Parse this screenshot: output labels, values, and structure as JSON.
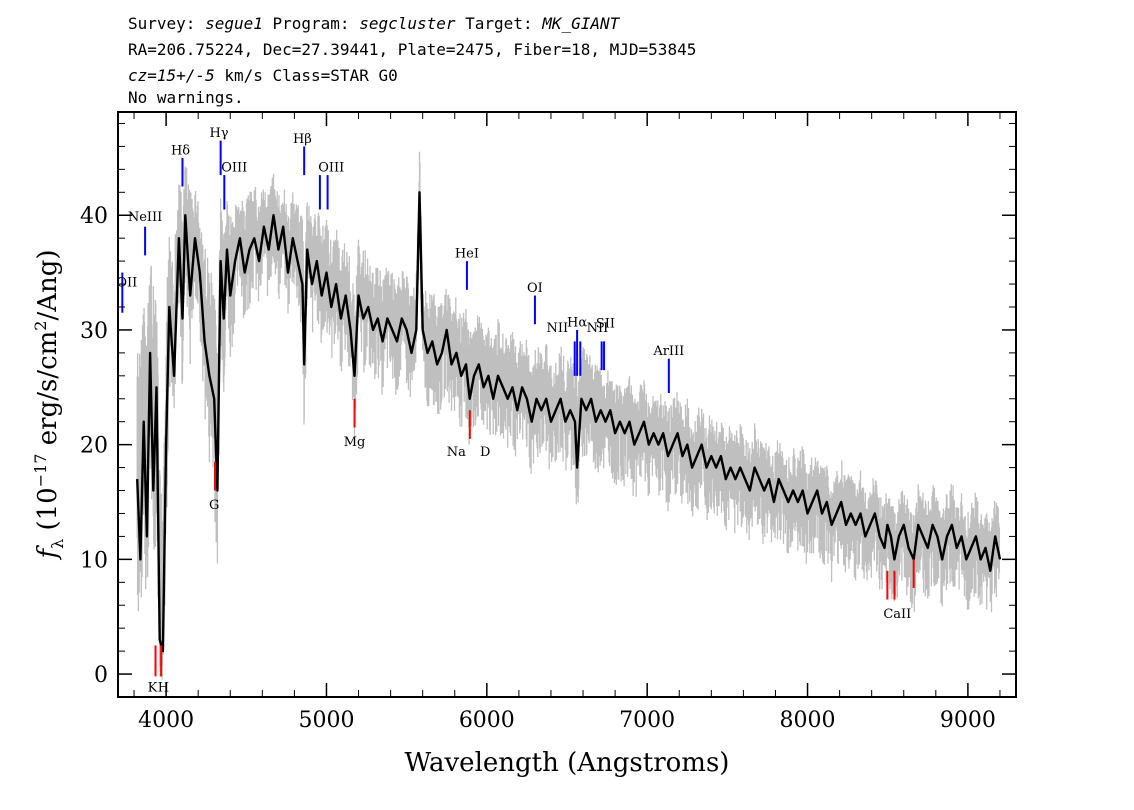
{
  "header": {
    "survey_key": "Survey: ",
    "survey": "segue1",
    "program_key": " Program: ",
    "program": "segcluster",
    "target_key": " Target: ",
    "target": "MK_GIANT",
    "line2": "RA=206.75224, Dec=27.39441, Plate=2475, Fiber=18, MJD=53845",
    "cz_key": "cz=15+/-5",
    "cz_rest": " km/s Class=STAR G0",
    "line4": "No warnings."
  },
  "chart_data": {
    "type": "line",
    "xlabel": "Wavelength (Angstroms)",
    "ylabel_main": "f",
    "ylabel_sub": "λ",
    "ylabel_rest": " (10",
    "ylabel_exp": "−17",
    "ylabel_tail": " erg/s/cm",
    "ylabel_exp2": "2",
    "ylabel_end": "/Ang)",
    "xlim": [
      3700,
      9300
    ],
    "ylim": [
      -2,
      49
    ],
    "x_ticks": [
      4000,
      5000,
      6000,
      7000,
      8000,
      9000
    ],
    "x_tick_labels": [
      "4000",
      "5000",
      "6000",
      "7000",
      "8000",
      "9000"
    ],
    "y_ticks": [
      0,
      10,
      20,
      30,
      40
    ],
    "y_tick_labels": [
      "0",
      "10",
      "20",
      "30",
      "40"
    ],
    "series": [
      {
        "role": "flux-smoothed",
        "color": "#000000",
        "x": [
          3820,
          3840,
          3860,
          3880,
          3900,
          3920,
          3940,
          3960,
          3980,
          4000,
          4020,
          4050,
          4080,
          4102,
          4120,
          4150,
          4180,
          4210,
          4240,
          4270,
          4300,
          4320,
          4340,
          4360,
          4380,
          4400,
          4430,
          4460,
          4490,
          4520,
          4550,
          4580,
          4610,
          4640,
          4670,
          4700,
          4730,
          4760,
          4790,
          4820,
          4850,
          4861,
          4880,
          4910,
          4940,
          4970,
          5000,
          5030,
          5060,
          5090,
          5120,
          5150,
          5175,
          5200,
          5230,
          5260,
          5290,
          5320,
          5350,
          5380,
          5410,
          5440,
          5470,
          5500,
          5530,
          5560,
          5580,
          5600,
          5630,
          5660,
          5690,
          5720,
          5750,
          5780,
          5810,
          5840,
          5870,
          5893,
          5920,
          5950,
          5980,
          6010,
          6040,
          6070,
          6100,
          6130,
          6160,
          6190,
          6220,
          6250,
          6280,
          6310,
          6340,
          6370,
          6400,
          6430,
          6460,
          6490,
          6520,
          6550,
          6563,
          6590,
          6620,
          6650,
          6680,
          6710,
          6740,
          6770,
          6800,
          6830,
          6860,
          6890,
          6920,
          6950,
          6980,
          7010,
          7040,
          7070,
          7100,
          7130,
          7160,
          7190,
          7220,
          7250,
          7280,
          7310,
          7340,
          7370,
          7400,
          7430,
          7460,
          7490,
          7520,
          7550,
          7580,
          7610,
          7640,
          7670,
          7700,
          7730,
          7760,
          7790,
          7820,
          7850,
          7880,
          7910,
          7940,
          7970,
          8000,
          8030,
          8060,
          8090,
          8120,
          8150,
          8180,
          8210,
          8240,
          8270,
          8300,
          8330,
          8360,
          8390,
          8420,
          8450,
          8480,
          8498,
          8520,
          8542,
          8570,
          8600,
          8630,
          8662,
          8690,
          8720,
          8750,
          8780,
          8810,
          8840,
          8870,
          8900,
          8930,
          8960,
          8990,
          9020,
          9050,
          9080,
          9110,
          9140,
          9170,
          9200
        ],
        "values": [
          17,
          10,
          22,
          12,
          28,
          16,
          25,
          3,
          2,
          20,
          32,
          26,
          38,
          31,
          40,
          33,
          38,
          35,
          29,
          26,
          24,
          16,
          36,
          31,
          37,
          33,
          36,
          38,
          35,
          37,
          38,
          36,
          39,
          37,
          40,
          37,
          39,
          35,
          38,
          36,
          34,
          27,
          37,
          34,
          36,
          33,
          35,
          32,
          34,
          31,
          33,
          30,
          26,
          33,
          31,
          32,
          30,
          31,
          29,
          31,
          30,
          29,
          31,
          30,
          28,
          30,
          42,
          30,
          28,
          29,
          27,
          28,
          30,
          27,
          28,
          26,
          27,
          24,
          26,
          27,
          25,
          26,
          24,
          26,
          25,
          24,
          25,
          23,
          25,
          24,
          22,
          24,
          23,
          24,
          22,
          23,
          24,
          22,
          23,
          22,
          18,
          24,
          23,
          24,
          22,
          23,
          22,
          23,
          21,
          22,
          21,
          22,
          20,
          21,
          22,
          20,
          21,
          20,
          21,
          19,
          20,
          21,
          19,
          20,
          18,
          19,
          20,
          18,
          19,
          18,
          19,
          17,
          18,
          17,
          18,
          17,
          16,
          18,
          17,
          16,
          17,
          15,
          17,
          16,
          15,
          16,
          15,
          16,
          14,
          15,
          16,
          14,
          15,
          13,
          14,
          15,
          13,
          14,
          13,
          14,
          12,
          13,
          14,
          12,
          11,
          13,
          12,
          10,
          12,
          13,
          11,
          10,
          13,
          12,
          11,
          13,
          12,
          10,
          12,
          13,
          11,
          12,
          10,
          11,
          12,
          10,
          11,
          9,
          12,
          10
        ]
      },
      {
        "role": "flux-noise-envelope",
        "color": "#bfbfbf",
        "upper": [
          30,
          28,
          34,
          30,
          38,
          34,
          36,
          18,
          14,
          32,
          40,
          37,
          44,
          41,
          45,
          42,
          43,
          41,
          38,
          36,
          34,
          28,
          42,
          39,
          42,
          40,
          41,
          42,
          41,
          42,
          43,
          41,
          43,
          42,
          44,
          42,
          43,
          40,
          42,
          41,
          40,
          36,
          42,
          40,
          41,
          39,
          40,
          38,
          39,
          37,
          38,
          36,
          33,
          38,
          37,
          37,
          35,
          36,
          35,
          36,
          35,
          34,
          36,
          35,
          33,
          35,
          46,
          35,
          33,
          34,
          32,
          33,
          34,
          32,
          33,
          31,
          32,
          30,
          31,
          32,
          30,
          31,
          29,
          31,
          30,
          29,
          30,
          28,
          30,
          29,
          27,
          29,
          28,
          29,
          27,
          28,
          29,
          27,
          28,
          27,
          26,
          29,
          28,
          28,
          27,
          27,
          26,
          27,
          25,
          26,
          25,
          26,
          24,
          25,
          26,
          24,
          25,
          24,
          25,
          23,
          24,
          25,
          23,
          24,
          22,
          23,
          24,
          22,
          23,
          22,
          23,
          21,
          22,
          21,
          22,
          21,
          20,
          22,
          21,
          20,
          21,
          19,
          21,
          20,
          19,
          20,
          19,
          20,
          18,
          19,
          20,
          18,
          19,
          17,
          18,
          19,
          17,
          18,
          17,
          18,
          16,
          17,
          18,
          16,
          15,
          17,
          16,
          14,
          16,
          17,
          15,
          14,
          17,
          16,
          15,
          17,
          16,
          14,
          16,
          17,
          15,
          16,
          14,
          15,
          16,
          14,
          15,
          13,
          16,
          14
        ],
        "lower": [
          6,
          2,
          12,
          3,
          18,
          6,
          14,
          -1,
          -1,
          10,
          25,
          18,
          32,
          24,
          35,
          26,
          33,
          29,
          22,
          18,
          15,
          8,
          30,
          24,
          32,
          27,
          31,
          34,
          30,
          32,
          34,
          31,
          35,
          32,
          36,
          32,
          35,
          31,
          34,
          32,
          28,
          20,
          32,
          29,
          31,
          28,
          30,
          27,
          29,
          26,
          28,
          25,
          20,
          28,
          26,
          27,
          25,
          26,
          24,
          26,
          25,
          24,
          26,
          25,
          23,
          25,
          37,
          25,
          23,
          24,
          22,
          23,
          25,
          22,
          23,
          21,
          22,
          19,
          21,
          22,
          20,
          21,
          19,
          21,
          20,
          19,
          20,
          18,
          20,
          19,
          17,
          19,
          18,
          19,
          17,
          18,
          19,
          17,
          18,
          17,
          12,
          19,
          18,
          19,
          17,
          18,
          17,
          18,
          16,
          17,
          16,
          17,
          15,
          16,
          17,
          15,
          16,
          15,
          16,
          14,
          15,
          16,
          14,
          15,
          13,
          14,
          15,
          13,
          14,
          13,
          14,
          12,
          13,
          12,
          13,
          12,
          11,
          13,
          12,
          11,
          12,
          10,
          12,
          11,
          10,
          11,
          10,
          11,
          9,
          10,
          11,
          9,
          10,
          8,
          9,
          10,
          8,
          9,
          8,
          9,
          7,
          8,
          9,
          7,
          6,
          8,
          7,
          5,
          7,
          8,
          6,
          5,
          8,
          7,
          6,
          8,
          7,
          5,
          7,
          8,
          6,
          7,
          5,
          6,
          7,
          5,
          6,
          4,
          7,
          5
        ]
      }
    ],
    "emission_lines": [
      {
        "label": "OII",
        "x": 3727,
        "y1": 31.5,
        "y2": 35
      },
      {
        "label": "NeIII",
        "x": 3869,
        "y1": 36.5,
        "y2": 39
      },
      {
        "label": "Hδ",
        "x": 4102,
        "y1": 42.5,
        "y2": 45
      },
      {
        "label": "Hγ",
        "x": 4340,
        "y1": 43.5,
        "y2": 46.5
      },
      {
        "label": "OIII",
        "x": 4363,
        "y1": 40.5,
        "y2": 43.5
      },
      {
        "label": "Hβ",
        "x": 4861,
        "y1": 43.5,
        "y2": 46
      },
      {
        "label": "OIII",
        "x": 4959,
        "y1": 40.5,
        "y2": 43.5
      },
      {
        "label": "OIII",
        "x": 5007,
        "y1": 40.5,
        "y2": 43.5
      },
      {
        "label": "HeI",
        "x": 5876,
        "y1": 33.5,
        "y2": 36
      },
      {
        "label": "OI",
        "x": 6300,
        "y1": 30.5,
        "y2": 33
      },
      {
        "label": "NII",
        "x": 6548,
        "y1": 26,
        "y2": 29
      },
      {
        "label": "Hα",
        "x": 6563,
        "y1": 26,
        "y2": 30
      },
      {
        "label": "NII",
        "x": 6583,
        "y1": 26,
        "y2": 29
      },
      {
        "label": "SII",
        "x": 6716,
        "y1": 26.5,
        "y2": 29
      },
      {
        "label": "SII",
        "x": 6731,
        "y1": 26.5,
        "y2": 29
      },
      {
        "label": "ArIII",
        "x": 7135,
        "y1": 24.5,
        "y2": 27.5
      }
    ],
    "absorption_lines": [
      {
        "label": "K",
        "x": 3934,
        "y1": -0.2,
        "y2": 2.5
      },
      {
        "label": "H",
        "x": 3969,
        "y1": -0.2,
        "y2": 2.5
      },
      {
        "label": "G",
        "x": 4305,
        "y1": 16,
        "y2": 18.5
      },
      {
        "label": "Mg",
        "x": 5175,
        "y1": 21.5,
        "y2": 24
      },
      {
        "label": "Na D",
        "x": 5894,
        "y1": 20.5,
        "y2": 23
      },
      {
        "label": "CaII",
        "x": 8498,
        "y1": 6.5,
        "y2": 9
      },
      {
        "label": "CaII",
        "x": 8542,
        "y1": 6.5,
        "y2": 9
      },
      {
        "label": "CaII",
        "x": 8662,
        "y1": 7.5,
        "y2": 10
      }
    ],
    "emission_label_texts": [
      "OII",
      "NeIII",
      "Hδ",
      "Hγ",
      "OIII",
      "Hβ",
      "OIII",
      "HeI",
      "OI",
      "NII",
      "Hα",
      "NII",
      "SII",
      "ArIII"
    ],
    "absorption_label_texts": [
      "K",
      "H",
      "G",
      "Mg",
      "Na",
      "D",
      "CaII"
    ]
  }
}
